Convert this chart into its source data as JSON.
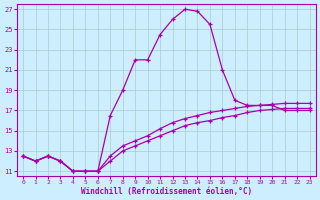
{
  "title": "",
  "xlabel": "Windchill (Refroidissement éolien,°C)",
  "ylabel": "",
  "bg_color": "#cceeff",
  "grid_color": "#aacccc",
  "line_color": "#aa00aa",
  "xlim": [
    -0.5,
    23.5
  ],
  "ylim": [
    10.5,
    27.5
  ],
  "xticks": [
    0,
    1,
    2,
    3,
    4,
    5,
    6,
    7,
    8,
    9,
    10,
    11,
    12,
    13,
    14,
    15,
    16,
    17,
    18,
    19,
    20,
    21,
    22,
    23
  ],
  "yticks": [
    11,
    13,
    15,
    17,
    19,
    21,
    23,
    25,
    27
  ],
  "curve1_x": [
    0,
    1,
    2,
    3,
    4,
    5,
    6,
    7,
    8,
    9,
    10,
    11,
    12,
    13,
    14,
    15,
    16,
    17,
    18,
    19,
    20,
    21,
    22,
    23
  ],
  "curve1_y": [
    12.5,
    12.0,
    12.5,
    12.0,
    11.0,
    11.0,
    11.0,
    16.5,
    19.0,
    22.0,
    22.0,
    24.5,
    26.0,
    27.0,
    26.8,
    25.5,
    21.0,
    18.0,
    17.5,
    17.5,
    17.5,
    17.0,
    17.0,
    17.0
  ],
  "curve2_x": [
    0,
    1,
    2,
    3,
    4,
    5,
    6,
    7,
    8,
    9,
    10,
    11,
    12,
    13,
    14,
    15,
    16,
    17,
    18,
    19,
    20,
    21,
    22,
    23
  ],
  "curve2_y": [
    12.5,
    12.0,
    12.5,
    12.0,
    11.0,
    11.0,
    11.0,
    12.0,
    13.0,
    13.5,
    14.0,
    14.5,
    15.0,
    15.5,
    15.8,
    16.0,
    16.3,
    16.5,
    16.8,
    17.0,
    17.1,
    17.2,
    17.2,
    17.2
  ],
  "curve3_x": [
    0,
    1,
    2,
    3,
    4,
    5,
    6,
    7,
    8,
    9,
    10,
    11,
    12,
    13,
    14,
    15,
    16,
    17,
    18,
    19,
    20,
    21,
    22,
    23
  ],
  "curve3_y": [
    12.5,
    12.0,
    12.5,
    12.0,
    11.0,
    11.0,
    11.0,
    12.5,
    13.5,
    14.0,
    14.5,
    15.2,
    15.8,
    16.2,
    16.5,
    16.8,
    17.0,
    17.2,
    17.4,
    17.5,
    17.6,
    17.7,
    17.7,
    17.7
  ]
}
